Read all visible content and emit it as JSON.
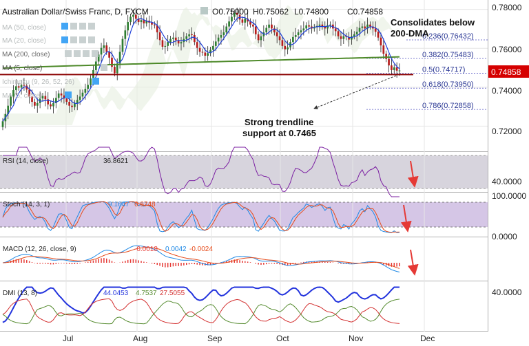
{
  "header": {
    "symbol": "Australian Dollar/Swiss Franc, D, FXCM",
    "ohlc": [
      "O0.75000",
      "H0.75062",
      "L0.74800",
      "C0.74858"
    ]
  },
  "indicator_legend": [
    "MA (50, close)",
    "MA (20, close)",
    "MA (200, close)",
    "MA (5, close)",
    "Ichimoku (9, 26, 52, 26)",
    "MA (5, close)"
  ],
  "annotations": {
    "consolidates": [
      "Consolidates below",
      "200-DMA"
    ],
    "trendline": [
      "Strong trendline",
      "support at 0.7465"
    ]
  },
  "colors": {
    "candle_up": "#2e7d32",
    "candle_down": "#b71c1c",
    "ma200": "#4e8a2a",
    "ma5": "#1f3fd8",
    "trendline": "#8b0000",
    "price_tag": "#d50000",
    "rsi": "#7b1fa2",
    "stoch_k": "#1e88e5",
    "stoch_d": "#e64a19",
    "macd": "#1e88e5",
    "signal": "#e64a19",
    "dmi_adx": "#2233dd",
    "dmi_plus": "#d32f2f",
    "dmi_minus": "#558b2f",
    "arrow": "#e53935"
  },
  "chart_data": [
    {
      "type": "candlestick",
      "title": "Australian Dollar/Swiss Franc, D, FXCM",
      "x_ticks": [
        "Jul",
        "Aug",
        "Sep",
        "Oct",
        "Nov",
        "Dec"
      ],
      "y_ticks": [
        "0.78000",
        "0.76000",
        "0.74000",
        "0.72000"
      ],
      "ylim": [
        0.712,
        0.782
      ],
      "last_price": "0.74858",
      "ohlc_last": {
        "open": 0.75,
        "high": 0.75062,
        "low": 0.748,
        "close": 0.74858
      },
      "fibonacci": [
        {
          "label": "0.236(0.76432)",
          "value": 0.76432
        },
        {
          "label": "0.382(0.75483)",
          "value": 0.75483
        },
        {
          "label": "0.5(0.74717)",
          "value": 0.74717
        },
        {
          "label": "0.618(0.73950)",
          "value": 0.7395
        },
        {
          "label": "0.786(0.72858)",
          "value": 0.72858
        }
      ],
      "trendline_support": 0.7465,
      "closes": [
        0.7225,
        0.7262,
        0.7305,
        0.7352,
        0.7385,
        0.7405,
        0.7398,
        0.7412,
        0.7408,
        0.7388,
        0.7352,
        0.7325,
        0.7305,
        0.7318,
        0.7342,
        0.7355,
        0.7338,
        0.7312,
        0.7302,
        0.7318,
        0.7345,
        0.7368,
        0.7358,
        0.7342,
        0.7325,
        0.7305,
        0.7298,
        0.7318,
        0.7335,
        0.7352,
        0.7372,
        0.7392,
        0.7412,
        0.7445,
        0.7488,
        0.7532,
        0.7568,
        0.7602,
        0.7615,
        0.7582,
        0.7552,
        0.7505,
        0.7472,
        0.7522,
        0.7582,
        0.7648,
        0.7692,
        0.7735,
        0.7762,
        0.7772,
        0.7752,
        0.7735,
        0.7745,
        0.7728,
        0.7742,
        0.7732,
        0.7722,
        0.7718,
        0.7682,
        0.7642,
        0.7608,
        0.7612,
        0.7632,
        0.7648,
        0.7655,
        0.7642,
        0.7625,
        0.7632,
        0.7648,
        0.7662,
        0.7672,
        0.7668,
        0.7632,
        0.7602,
        0.7582,
        0.7578,
        0.7562,
        0.7575,
        0.7592,
        0.7612,
        0.7635,
        0.7655,
        0.7668,
        0.7682,
        0.7712,
        0.7738,
        0.7762,
        0.7782,
        0.7772,
        0.7748,
        0.7732,
        0.7752,
        0.7738,
        0.7722,
        0.7712,
        0.7672,
        0.7642,
        0.7662,
        0.7682,
        0.7705,
        0.7722,
        0.7702,
        0.7682,
        0.7662,
        0.7642,
        0.7612,
        0.7595,
        0.7605,
        0.7632,
        0.7658,
        0.7668,
        0.7682,
        0.7692,
        0.7702,
        0.7718,
        0.7712,
        0.7702,
        0.7708,
        0.7715,
        0.7722,
        0.7712,
        0.7702,
        0.7718,
        0.7722,
        0.7702,
        0.7688,
        0.7662,
        0.7648,
        0.7662,
        0.7658,
        0.7645,
        0.7662,
        0.7672,
        0.7685,
        0.7705,
        0.7712,
        0.7702,
        0.7722,
        0.7712,
        0.7702,
        0.7685,
        0.7655,
        0.7615,
        0.7572,
        0.7545,
        0.7512,
        0.7488,
        0.7502,
        0.7485,
        0.7486
      ]
    },
    {
      "type": "line",
      "title": "RSI (14, close)",
      "value_label": "36.8621",
      "y_ticks": [
        "40.0000"
      ],
      "ylim": [
        20,
        80
      ],
      "bands": [
        30,
        70
      ]
    },
    {
      "type": "line",
      "title": "Stoch (14, 3, 1)",
      "value_labels": [
        "9.1647",
        "6.6748"
      ],
      "y_ticks": [
        "100.0000",
        "0.0000"
      ],
      "ylim": [
        0,
        100
      ],
      "bands": [
        20,
        80
      ]
    },
    {
      "type": "line",
      "title": "MACD (12, 26, close, 9)",
      "value_labels": [
        "-0.0018",
        "0.0042",
        "-0.0024"
      ],
      "y_ticks": [
        "0.0000"
      ]
    },
    {
      "type": "line",
      "title": "DMI (13, 8)",
      "value_labels": [
        "44.0453",
        "4.7537",
        "27.5055"
      ],
      "y_ticks": [
        "40.0000"
      ],
      "ylim": [
        0,
        55
      ]
    }
  ]
}
